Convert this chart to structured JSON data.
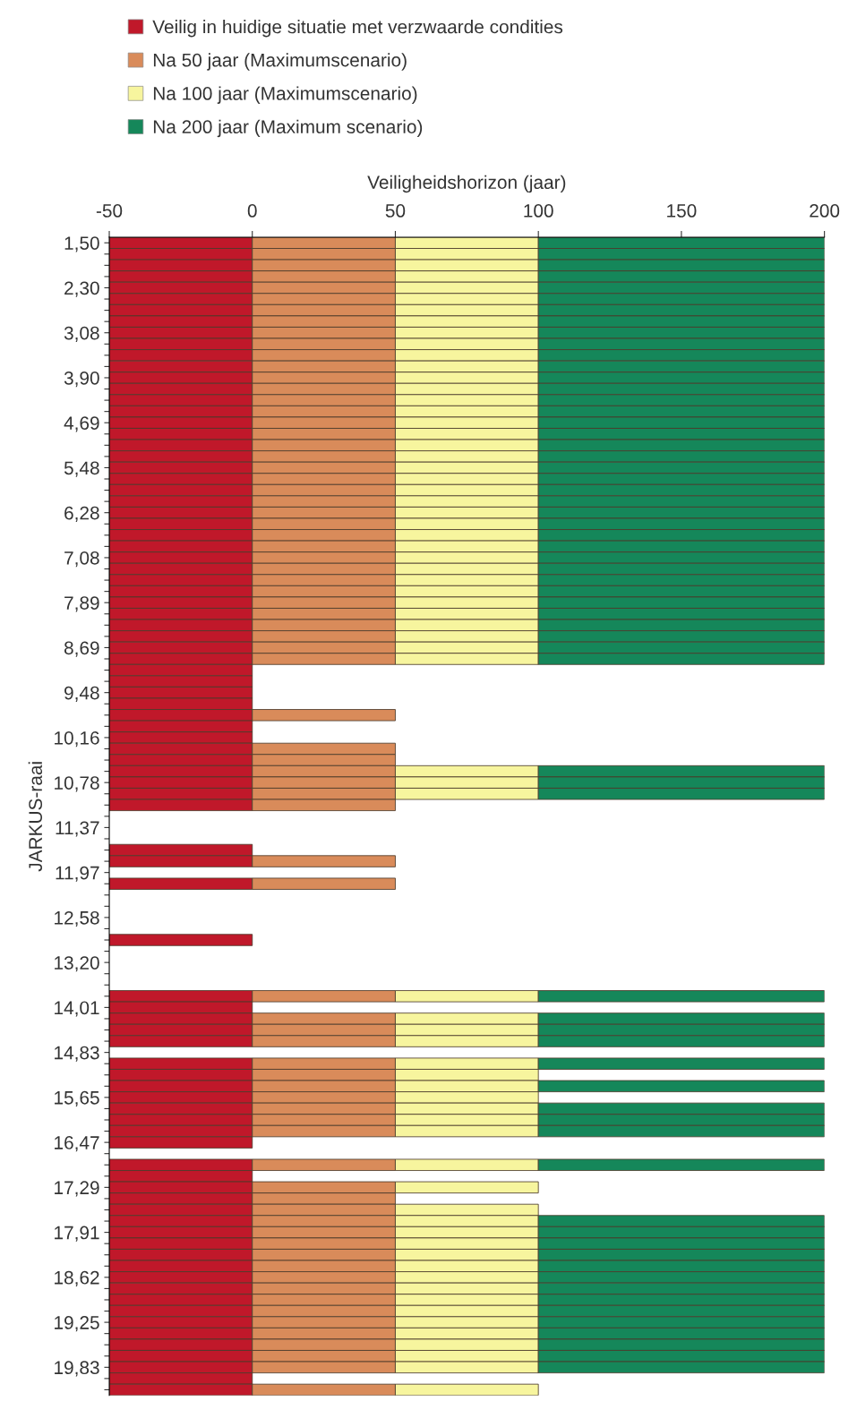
{
  "chart_data": {
    "type": "bar",
    "orientation": "horizontal",
    "stacked": true,
    "xlabel": "Veiligheidshorizon (jaar)",
    "ylabel": "JARKUS-raai",
    "xlim": [
      -50,
      200
    ],
    "xticks": [
      -50,
      0,
      50,
      100,
      150,
      200
    ],
    "legend": "top",
    "grid": false,
    "categories": [
      "1,50",
      null,
      null,
      null,
      "2,30",
      null,
      null,
      null,
      "3,08",
      null,
      null,
      null,
      "3,90",
      null,
      null,
      null,
      "4,69",
      null,
      null,
      null,
      "5,48",
      null,
      null,
      null,
      "6,28",
      null,
      null,
      null,
      "7,08",
      null,
      null,
      null,
      "7,89",
      null,
      null,
      null,
      "8,69",
      null,
      null,
      null,
      "9,48",
      null,
      null,
      null,
      "10,16",
      null,
      null,
      null,
      "10,78",
      null,
      null,
      null,
      "11,37",
      null,
      null,
      null,
      "11,97",
      null,
      null,
      null,
      "12,58",
      null,
      null,
      null,
      "13,20",
      null,
      null,
      null,
      "14,01",
      null,
      null,
      null,
      "14,83",
      null,
      null,
      null,
      "15,65",
      null,
      null,
      null,
      "16,47",
      null,
      null,
      null,
      "17,29",
      null,
      null,
      null,
      "17,91",
      null,
      null,
      null,
      "18,62",
      null,
      null,
      null,
      "19,25",
      null,
      null,
      null,
      "19,83",
      null,
      null
    ],
    "series": [
      {
        "name": "Veilig in huidige situatie met verzwaarde condities",
        "color": "#c0182a",
        "values": [
          -50,
          -50,
          -50,
          -50,
          -50,
          -50,
          -50,
          -50,
          -50,
          -50,
          -50,
          -50,
          -50,
          -50,
          -50,
          -50,
          -50,
          -50,
          -50,
          -50,
          -50,
          -50,
          -50,
          -50,
          -50,
          -50,
          -50,
          -50,
          -50,
          -50,
          -50,
          -50,
          -50,
          -50,
          -50,
          -50,
          -50,
          -50,
          -50,
          -50,
          -50,
          -50,
          -50,
          -50,
          -50,
          -50,
          -50,
          -50,
          -50,
          -50,
          -50,
          null,
          null,
          null,
          -50,
          -50,
          null,
          -50,
          null,
          null,
          null,
          null,
          -50,
          null,
          null,
          null,
          null,
          -50,
          -50,
          -50,
          -50,
          -50,
          null,
          -50,
          -50,
          -50,
          -50,
          -50,
          -50,
          -50,
          -50,
          null,
          -50,
          -50,
          -50,
          -50,
          -50,
          -50,
          -50,
          -50,
          -50,
          -50,
          -50,
          -50,
          -50,
          -50,
          -50,
          -50,
          -50,
          -50,
          -50,
          -50,
          -50
        ]
      },
      {
        "name": "Na 50 jaar (Maximumscenario)",
        "color": "#d98b5a",
        "values": [
          50,
          50,
          50,
          50,
          50,
          50,
          50,
          50,
          50,
          50,
          50,
          50,
          50,
          50,
          50,
          50,
          50,
          50,
          50,
          50,
          50,
          50,
          50,
          50,
          50,
          50,
          50,
          50,
          50,
          50,
          50,
          50,
          50,
          50,
          50,
          50,
          50,
          50,
          null,
          null,
          null,
          null,
          50,
          null,
          null,
          50,
          50,
          50,
          50,
          50,
          50,
          null,
          null,
          null,
          null,
          50,
          null,
          50,
          null,
          null,
          null,
          null,
          null,
          null,
          null,
          null,
          null,
          50,
          null,
          50,
          50,
          50,
          null,
          50,
          50,
          50,
          50,
          50,
          50,
          50,
          null,
          null,
          50,
          null,
          50,
          50,
          50,
          50,
          50,
          50,
          50,
          50,
          50,
          50,
          50,
          50,
          50,
          50,
          50,
          50,
          50,
          null,
          50
        ]
      },
      {
        "name": "Na 100 jaar (Maximumscenario)",
        "color": "#f7f59e",
        "values": [
          50,
          50,
          50,
          50,
          50,
          50,
          50,
          50,
          50,
          50,
          50,
          50,
          50,
          50,
          50,
          50,
          50,
          50,
          50,
          50,
          50,
          50,
          50,
          50,
          50,
          50,
          50,
          50,
          50,
          50,
          50,
          50,
          50,
          50,
          50,
          50,
          50,
          50,
          null,
          null,
          null,
          null,
          null,
          null,
          null,
          null,
          null,
          50,
          50,
          50,
          null,
          null,
          null,
          null,
          null,
          null,
          null,
          null,
          null,
          null,
          null,
          null,
          null,
          null,
          null,
          null,
          null,
          50,
          null,
          50,
          50,
          50,
          null,
          50,
          50,
          50,
          50,
          50,
          50,
          50,
          null,
          null,
          50,
          null,
          50,
          null,
          50,
          50,
          50,
          50,
          50,
          50,
          50,
          50,
          50,
          50,
          50,
          50,
          50,
          50,
          50,
          null,
          50
        ]
      },
      {
        "name": "Na 200 jaar (Maximum scenario)",
        "color": "#15875a",
        "values": [
          100,
          100,
          100,
          100,
          100,
          100,
          100,
          100,
          100,
          100,
          100,
          100,
          100,
          100,
          100,
          100,
          100,
          100,
          100,
          100,
          100,
          100,
          100,
          100,
          100,
          100,
          100,
          100,
          100,
          100,
          100,
          100,
          100,
          100,
          100,
          100,
          100,
          100,
          null,
          null,
          null,
          null,
          null,
          null,
          null,
          null,
          null,
          100,
          100,
          100,
          null,
          null,
          null,
          null,
          null,
          null,
          null,
          null,
          null,
          null,
          null,
          null,
          null,
          null,
          null,
          null,
          null,
          100,
          null,
          100,
          100,
          100,
          null,
          100,
          null,
          100,
          null,
          100,
          100,
          100,
          null,
          null,
          100,
          null,
          null,
          null,
          null,
          100,
          100,
          100,
          100,
          100,
          100,
          100,
          100,
          100,
          100,
          100,
          100,
          100,
          100,
          null,
          null
        ]
      }
    ]
  }
}
